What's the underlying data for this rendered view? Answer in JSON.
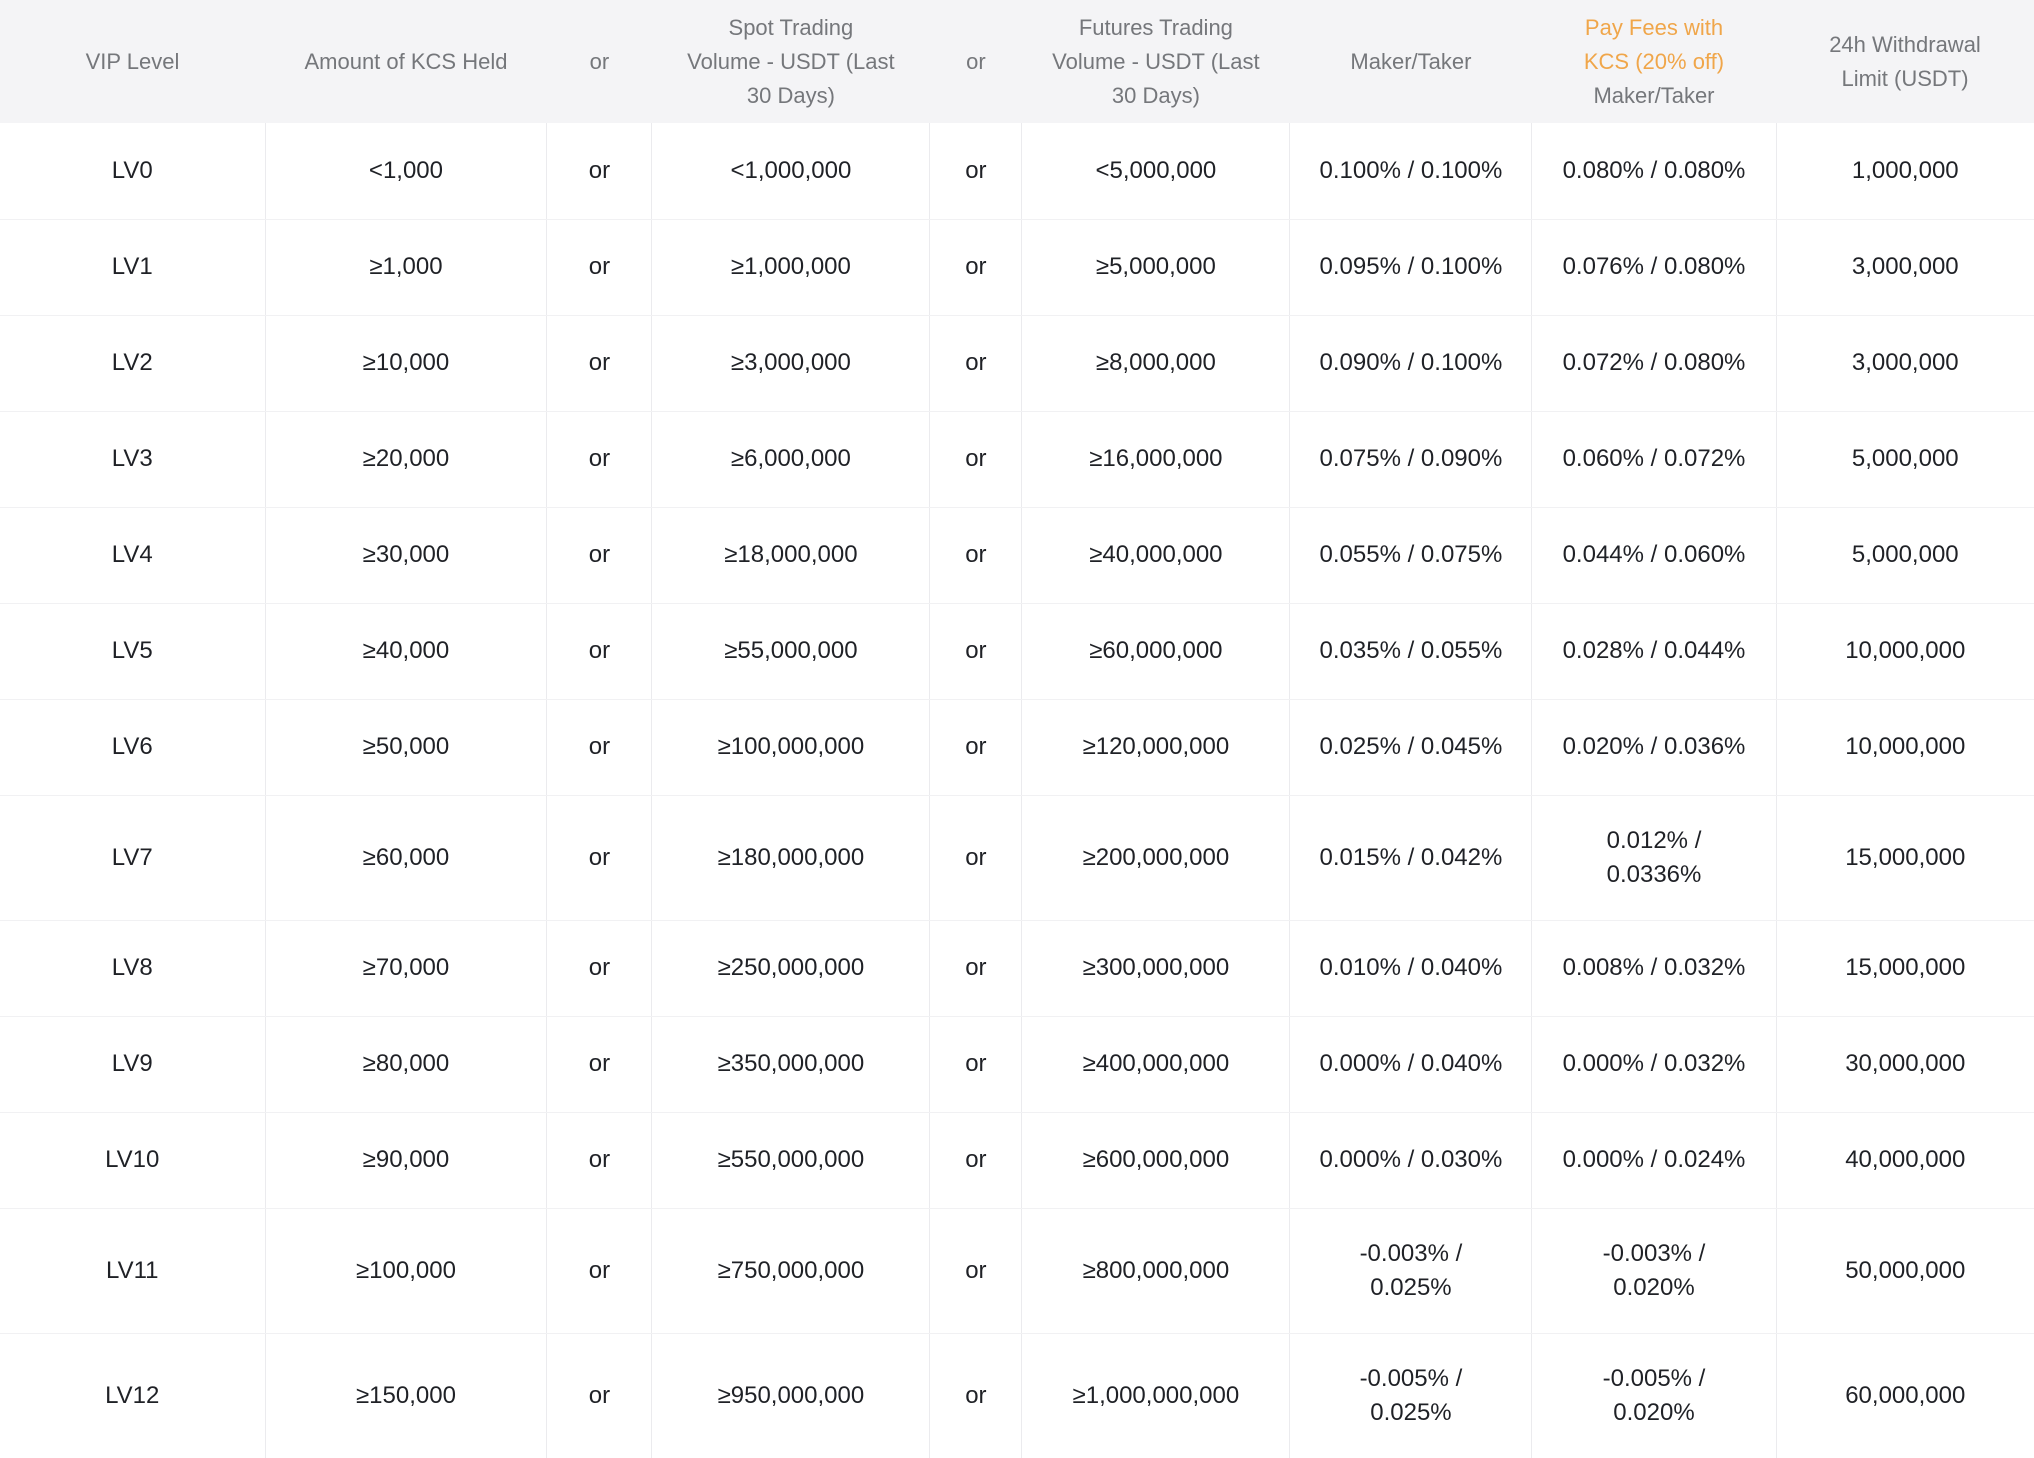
{
  "theme": {
    "header_bg": "#f4f4f6",
    "header_text": "#75777b",
    "accent_orange": "#f0a64a",
    "body_text": "#1f2126",
    "vertical_border": "#ebebee",
    "horizontal_border": "#f1f1f3"
  },
  "table": {
    "columns": [
      {
        "key": "vip_level",
        "label": "VIP Level"
      },
      {
        "key": "kcs_held",
        "label": "Amount of KCS Held"
      },
      {
        "key": "or_1",
        "label": "or"
      },
      {
        "key": "spot_volume",
        "label": "Spot Trading\nVolume - USDT (Last\n30 Days)"
      },
      {
        "key": "or_2",
        "label": "or"
      },
      {
        "key": "futures_volume",
        "label": "Futures Trading\nVolume - USDT (Last\n30 Days)"
      },
      {
        "key": "maker_taker",
        "label": "Maker/Taker"
      },
      {
        "key": "kcs_fee_discount",
        "label_accent": "Pay Fees with\nKCS (20% off)",
        "label": "Maker/Taker"
      },
      {
        "key": "withdrawal_limit",
        "label": "24h Withdrawal\nLimit (USDT)"
      }
    ],
    "rows": [
      [
        "LV0",
        "<1,000",
        "or",
        "<1,000,000",
        "or",
        "<5,000,000",
        "0.100% / 0.100%",
        "0.080% / 0.080%",
        "1,000,000"
      ],
      [
        "LV1",
        "≥1,000",
        "or",
        "≥1,000,000",
        "or",
        "≥5,000,000",
        "0.095% / 0.100%",
        "0.076% / 0.080%",
        "3,000,000"
      ],
      [
        "LV2",
        "≥10,000",
        "or",
        "≥3,000,000",
        "or",
        "≥8,000,000",
        "0.090% / 0.100%",
        "0.072% / 0.080%",
        "3,000,000"
      ],
      [
        "LV3",
        "≥20,000",
        "or",
        "≥6,000,000",
        "or",
        "≥16,000,000",
        "0.075% / 0.090%",
        "0.060% / 0.072%",
        "5,000,000"
      ],
      [
        "LV4",
        "≥30,000",
        "or",
        "≥18,000,000",
        "or",
        "≥40,000,000",
        "0.055% / 0.075%",
        "0.044% / 0.060%",
        "5,000,000"
      ],
      [
        "LV5",
        "≥40,000",
        "or",
        "≥55,000,000",
        "or",
        "≥60,000,000",
        "0.035% / 0.055%",
        "0.028% / 0.044%",
        "10,000,000"
      ],
      [
        "LV6",
        "≥50,000",
        "or",
        "≥100,000,000",
        "or",
        "≥120,000,000",
        "0.025% / 0.045%",
        "0.020% / 0.036%",
        "10,000,000"
      ],
      [
        "LV7",
        "≥60,000",
        "or",
        "≥180,000,000",
        "or",
        "≥200,000,000",
        "0.015% / 0.042%",
        "0.012% /\n0.0336%",
        "15,000,000"
      ],
      [
        "LV8",
        "≥70,000",
        "or",
        "≥250,000,000",
        "or",
        "≥300,000,000",
        "0.010% / 0.040%",
        "0.008% / 0.032%",
        "15,000,000"
      ],
      [
        "LV9",
        "≥80,000",
        "or",
        "≥350,000,000",
        "or",
        "≥400,000,000",
        "0.000% / 0.040%",
        "0.000% / 0.032%",
        "30,000,000"
      ],
      [
        "LV10",
        "≥90,000",
        "or",
        "≥550,000,000",
        "or",
        "≥600,000,000",
        "0.000% / 0.030%",
        "0.000% / 0.024%",
        "40,000,000"
      ],
      [
        "LV11",
        "≥100,000",
        "or",
        "≥750,000,000",
        "or",
        "≥800,000,000",
        "-0.003% /\n0.025%",
        "-0.003% /\n0.020%",
        "50,000,000"
      ],
      [
        "LV12",
        "≥150,000",
        "or",
        "≥950,000,000",
        "or",
        "≥1,000,000,000",
        "-0.005% /\n0.025%",
        "-0.005% /\n0.020%",
        "60,000,000"
      ]
    ]
  }
}
